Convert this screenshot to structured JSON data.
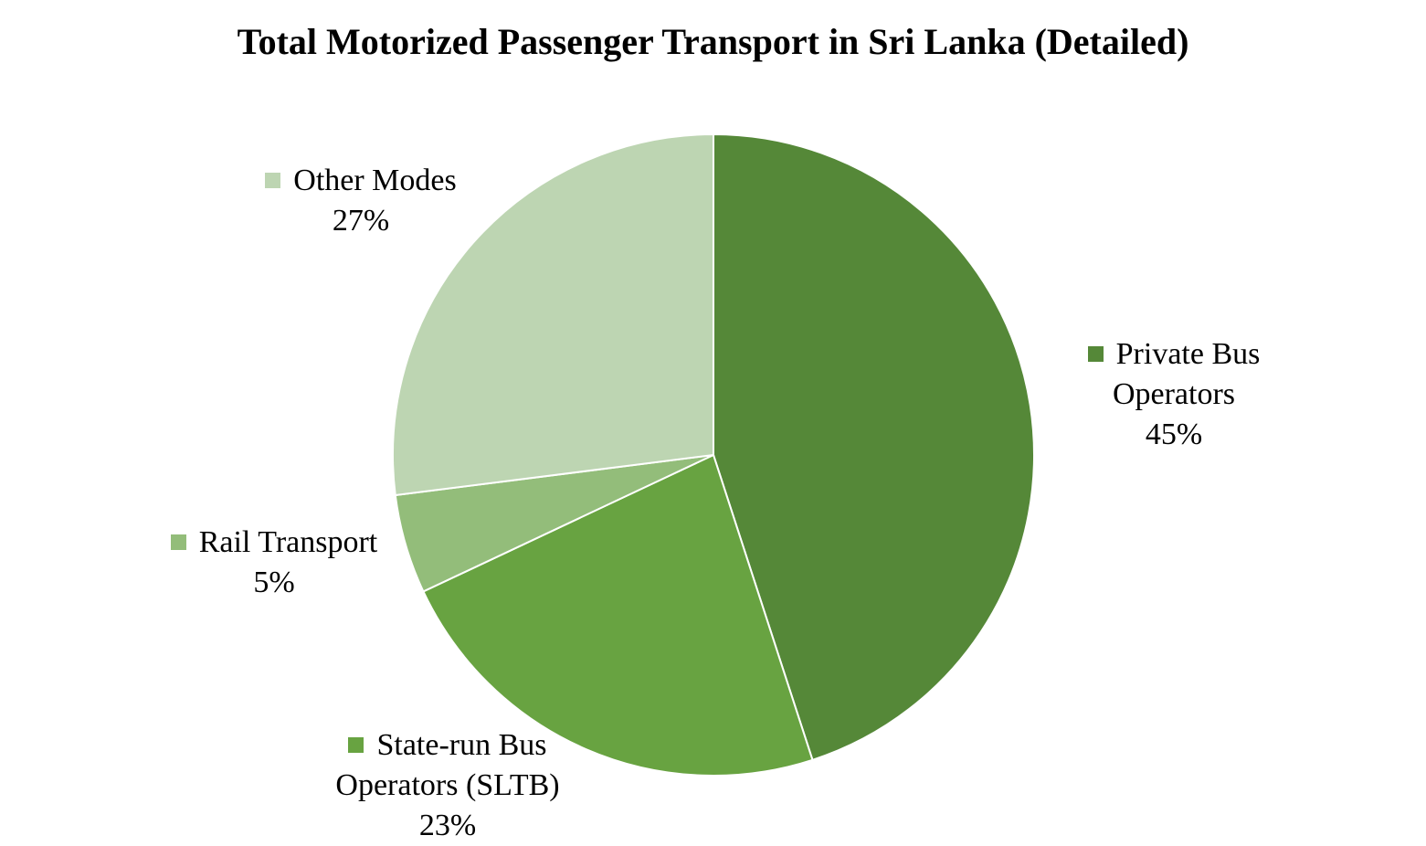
{
  "chart_data": {
    "type": "pie",
    "title": "Total Motorized Passenger Transport in Sri Lanka (Detailed)",
    "legend": "none",
    "slices": [
      {
        "label": "Private Bus Operators",
        "value": 45,
        "value_label": "45%",
        "color": "#558838"
      },
      {
        "label": "State-run Bus Operators (SLTB)",
        "value": 23,
        "value_label": "23%",
        "color": "#68a341"
      },
      {
        "label": "Rail Transport",
        "value": 5,
        "value_label": "5%",
        "color": "#93bd7a"
      },
      {
        "label": "Other Modes",
        "value": 27,
        "value_label": "27%",
        "color": "#bdd5b2"
      }
    ]
  }
}
